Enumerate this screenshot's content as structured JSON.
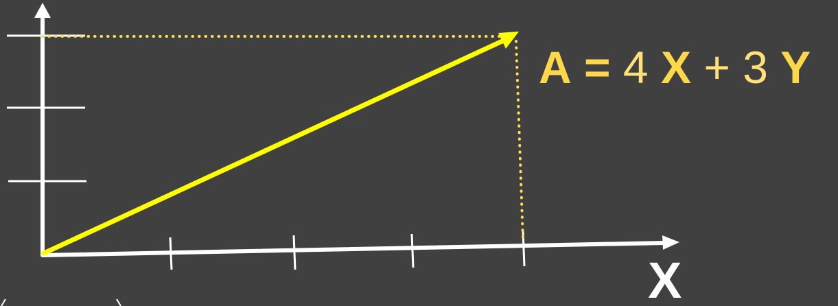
{
  "colors": {
    "background": "#404040",
    "axis": "#ffffff",
    "vector": "#ffff00",
    "guide": "#ffdf4f",
    "equation_bold": "#ffd84a",
    "equation_light": "#ffe07a",
    "label": "#ffffff"
  },
  "equation": {
    "vector_name": "A",
    "equals": "=",
    "x_coefficient": "4",
    "x_basis": "X",
    "plus": "+",
    "y_coefficient": "3",
    "y_basis": "Y"
  },
  "axes": {
    "x_label": "X"
  },
  "vector": {
    "x_component": 4,
    "y_component": 3
  },
  "ticks": {
    "x_count": 4,
    "y_count": 3
  },
  "icons": {
    "x_arrowhead": "arrowhead-right-icon",
    "y_arrowhead": "arrowhead-up-icon",
    "vector_arrowhead": "arrowhead-icon"
  }
}
